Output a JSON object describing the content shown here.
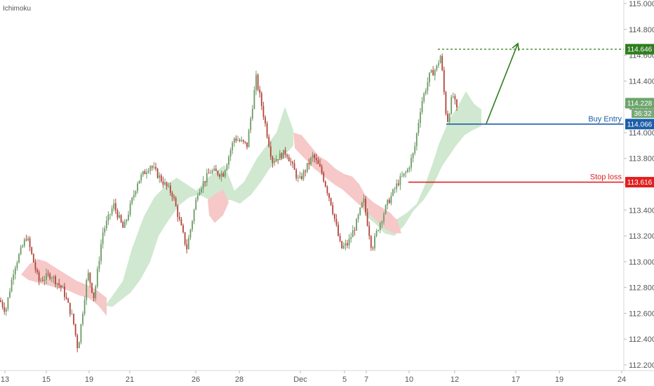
{
  "indicator_label": "Ichimoku",
  "colors": {
    "up": "#6b9b64",
    "down": "#b0443a",
    "cloud_bull": "#cfe8cf",
    "cloud_bear": "#f6c8c8",
    "entry": "#1c5ea8",
    "stop": "#e02020",
    "target": "#2f7d1f",
    "price": "#6aa56a",
    "timer": "#79a979"
  },
  "chart_data": {
    "type": "candlestick",
    "ylim": [
      112.2,
      115.0
    ],
    "yticks": [
      "115.000",
      "114.800",
      "114.600",
      "114.400",
      "114.200",
      "114.000",
      "113.800",
      "113.600",
      "113.400",
      "113.200",
      "113.000",
      "112.800",
      "112.600",
      "112.400",
      "112.200"
    ],
    "xlim": [
      0,
      886
    ],
    "xticks": [
      {
        "label": "13",
        "x": 7
      },
      {
        "label": "15",
        "x": 66
      },
      {
        "label": "19",
        "x": 127
      },
      {
        "label": "21",
        "x": 185
      },
      {
        "label": "26",
        "x": 279
      },
      {
        "label": "28",
        "x": 341
      },
      {
        "label": "Dec",
        "x": 428
      },
      {
        "label": "5",
        "x": 491
      },
      {
        "label": "7",
        "x": 522
      },
      {
        "label": "10",
        "x": 583
      },
      {
        "label": "12",
        "x": 648
      },
      {
        "label": "17",
        "x": 735
      },
      {
        "label": "19",
        "x": 797
      },
      {
        "label": "24",
        "x": 886
      }
    ],
    "price_path": [
      [
        0,
        112.7
      ],
      [
        8,
        112.62
      ],
      [
        20,
        112.95
      ],
      [
        38,
        113.2
      ],
      [
        55,
        112.85
      ],
      [
        72,
        112.9
      ],
      [
        90,
        112.78
      ],
      [
        104,
        112.55
      ],
      [
        111,
        112.32
      ],
      [
        118,
        112.62
      ],
      [
        125,
        112.92
      ],
      [
        134,
        112.72
      ],
      [
        146,
        113.22
      ],
      [
        162,
        113.44
      ],
      [
        176,
        113.25
      ],
      [
        196,
        113.62
      ],
      [
        214,
        113.75
      ],
      [
        232,
        113.62
      ],
      [
        246,
        113.52
      ],
      [
        266,
        113.1
      ],
      [
        282,
        113.55
      ],
      [
        300,
        113.7
      ],
      [
        318,
        113.68
      ],
      [
        334,
        113.96
      ],
      [
        352,
        113.9
      ],
      [
        365,
        114.42
      ],
      [
        374,
        114.18
      ],
      [
        388,
        113.78
      ],
      [
        408,
        113.85
      ],
      [
        426,
        113.62
      ],
      [
        446,
        113.82
      ],
      [
        458,
        113.7
      ],
      [
        472,
        113.45
      ],
      [
        486,
        113.1
      ],
      [
        496,
        113.14
      ],
      [
        508,
        113.3
      ],
      [
        518,
        113.48
      ],
      [
        530,
        113.1
      ],
      [
        538,
        113.25
      ],
      [
        552,
        113.45
      ],
      [
        568,
        113.62
      ],
      [
        580,
        113.7
      ],
      [
        590,
        113.85
      ],
      [
        600,
        114.22
      ],
      [
        612,
        114.44
      ],
      [
        622,
        114.5
      ],
      [
        628,
        114.6
      ],
      [
        633,
        114.3
      ],
      [
        637,
        114.07
      ],
      [
        645,
        114.3
      ],
      [
        652,
        114.15
      ]
    ],
    "cloud_bull": [
      [
        [
          150,
          112.66
        ],
        [
          162,
          112.75
        ],
        [
          175,
          112.85
        ],
        [
          188,
          113.1
        ],
        [
          205,
          113.35
        ],
        [
          220,
          113.5
        ],
        [
          238,
          113.6
        ],
        [
          252,
          113.65
        ],
        [
          266,
          113.6
        ],
        [
          280,
          113.55
        ],
        [
          296,
          113.65
        ],
        [
          308,
          113.7
        ],
        [
          320,
          113.75
        ],
        [
          334,
          113.55
        ],
        [
          348,
          113.62
        ],
        [
          366,
          113.8
        ],
        [
          380,
          113.9
        ],
        [
          394,
          114.0
        ],
        [
          406,
          114.2
        ],
        [
          418,
          114.02
        ],
        [
          418,
          113.9
        ],
        [
          410,
          113.85
        ],
        [
          398,
          113.8
        ],
        [
          384,
          113.72
        ],
        [
          372,
          113.62
        ],
        [
          358,
          113.52
        ],
        [
          342,
          113.45
        ],
        [
          328,
          113.48
        ],
        [
          312,
          113.46
        ],
        [
          298,
          113.48
        ],
        [
          284,
          113.52
        ],
        [
          270,
          113.5
        ],
        [
          256,
          113.44
        ],
        [
          240,
          113.32
        ],
        [
          226,
          113.2
        ],
        [
          214,
          113.0
        ],
        [
          200,
          112.86
        ],
        [
          186,
          112.76
        ],
        [
          172,
          112.7
        ],
        [
          160,
          112.65
        ]
      ],
      [
        [
          516,
          113.42
        ],
        [
          528,
          113.4
        ],
        [
          540,
          113.38
        ],
        [
          552,
          113.35
        ],
        [
          566,
          113.33
        ],
        [
          580,
          113.38
        ],
        [
          594,
          113.45
        ],
        [
          606,
          113.6
        ],
        [
          616,
          113.75
        ],
        [
          626,
          113.92
        ],
        [
          634,
          114.02
        ],
        [
          640,
          114.1
        ],
        [
          652,
          114.2
        ],
        [
          664,
          114.32
        ],
        [
          676,
          114.22
        ],
        [
          686,
          114.18
        ],
        [
          686,
          114.05
        ],
        [
          674,
          114.02
        ],
        [
          662,
          113.98
        ],
        [
          650,
          113.9
        ],
        [
          640,
          113.82
        ],
        [
          630,
          113.74
        ],
        [
          618,
          113.6
        ],
        [
          604,
          113.48
        ],
        [
          590,
          113.4
        ],
        [
          576,
          113.28
        ],
        [
          562,
          113.2
        ],
        [
          548,
          113.22
        ],
        [
          534,
          113.3
        ],
        [
          522,
          113.35
        ]
      ]
    ],
    "cloud_bear": [
      [
        [
          30,
          112.9
        ],
        [
          42,
          112.98
        ],
        [
          54,
          113.02
        ],
        [
          66,
          113.0
        ],
        [
          80,
          112.95
        ],
        [
          95,
          112.9
        ],
        [
          110,
          112.85
        ],
        [
          124,
          112.82
        ],
        [
          138,
          112.78
        ],
        [
          152,
          112.72
        ],
        [
          152,
          112.58
        ],
        [
          140,
          112.66
        ],
        [
          126,
          112.72
        ],
        [
          112,
          112.74
        ],
        [
          96,
          112.78
        ],
        [
          80,
          112.8
        ],
        [
          66,
          112.82
        ],
        [
          52,
          112.84
        ],
        [
          40,
          112.86
        ]
      ],
      [
        [
          296,
          113.48
        ],
        [
          306,
          113.52
        ],
        [
          318,
          113.56
        ],
        [
          326,
          113.46
        ],
        [
          318,
          113.36
        ],
        [
          306,
          113.3
        ],
        [
          298,
          113.36
        ]
      ],
      [
        [
          418,
          114.0
        ],
        [
          430,
          113.98
        ],
        [
          442,
          113.9
        ],
        [
          454,
          113.82
        ],
        [
          466,
          113.78
        ],
        [
          478,
          113.72
        ],
        [
          490,
          113.68
        ],
        [
          502,
          113.66
        ],
        [
          512,
          113.6
        ],
        [
          520,
          113.52
        ],
        [
          532,
          113.46
        ],
        [
          544,
          113.42
        ],
        [
          556,
          113.38
        ],
        [
          566,
          113.32
        ],
        [
          572,
          113.22
        ],
        [
          560,
          113.22
        ],
        [
          548,
          113.26
        ],
        [
          536,
          113.32
        ],
        [
          524,
          113.38
        ],
        [
          512,
          113.44
        ],
        [
          500,
          113.5
        ],
        [
          488,
          113.56
        ],
        [
          476,
          113.6
        ],
        [
          462,
          113.66
        ],
        [
          448,
          113.72
        ],
        [
          434,
          113.8
        ],
        [
          420,
          113.88
        ]
      ]
    ],
    "levels": [
      {
        "name": "Buy Entry",
        "value": 114.066,
        "label": "114.066",
        "x_start": 636
      },
      {
        "name": "Stop loss",
        "value": 113.616,
        "label": "113.616",
        "x_start": 582
      },
      {
        "name": "Target",
        "value": 114.646,
        "label": "114.646",
        "x_start": 624
      }
    ],
    "arrow": {
      "from": [
        693,
        114.07
      ],
      "to": [
        738,
        114.69
      ]
    },
    "current_price": {
      "value": 114.228,
      "label": "114.228",
      "timer": "36:32"
    }
  }
}
